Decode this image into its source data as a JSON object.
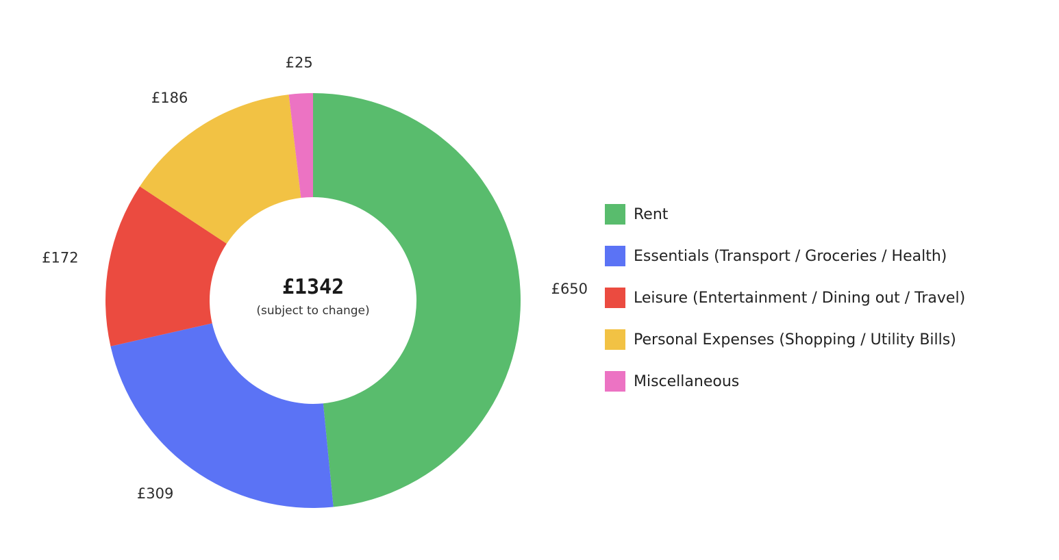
{
  "chart_data": {
    "type": "pie",
    "title": "",
    "center": {
      "total": "£1342",
      "note": "(subject to change)"
    },
    "slices": [
      {
        "label": "Rent",
        "value": 650,
        "display": "£650",
        "color": "#59bc6d"
      },
      {
        "label": "Essentials (Transport / Groceries / Health)",
        "value": 309,
        "display": "£309",
        "color": "#5b73f5"
      },
      {
        "label": "Leisure (Entertainment / Dining out / Travel)",
        "value": 172,
        "display": "£172",
        "color": "#eb4b40"
      },
      {
        "label": "Personal Expenses (Shopping / Utility Bills)",
        "value": 186,
        "display": "£186",
        "color": "#f2c244"
      },
      {
        "label": "Miscellaneous",
        "value": 25,
        "display": "£25",
        "color": "#ec73c3"
      }
    ],
    "legend_position": "right"
  }
}
